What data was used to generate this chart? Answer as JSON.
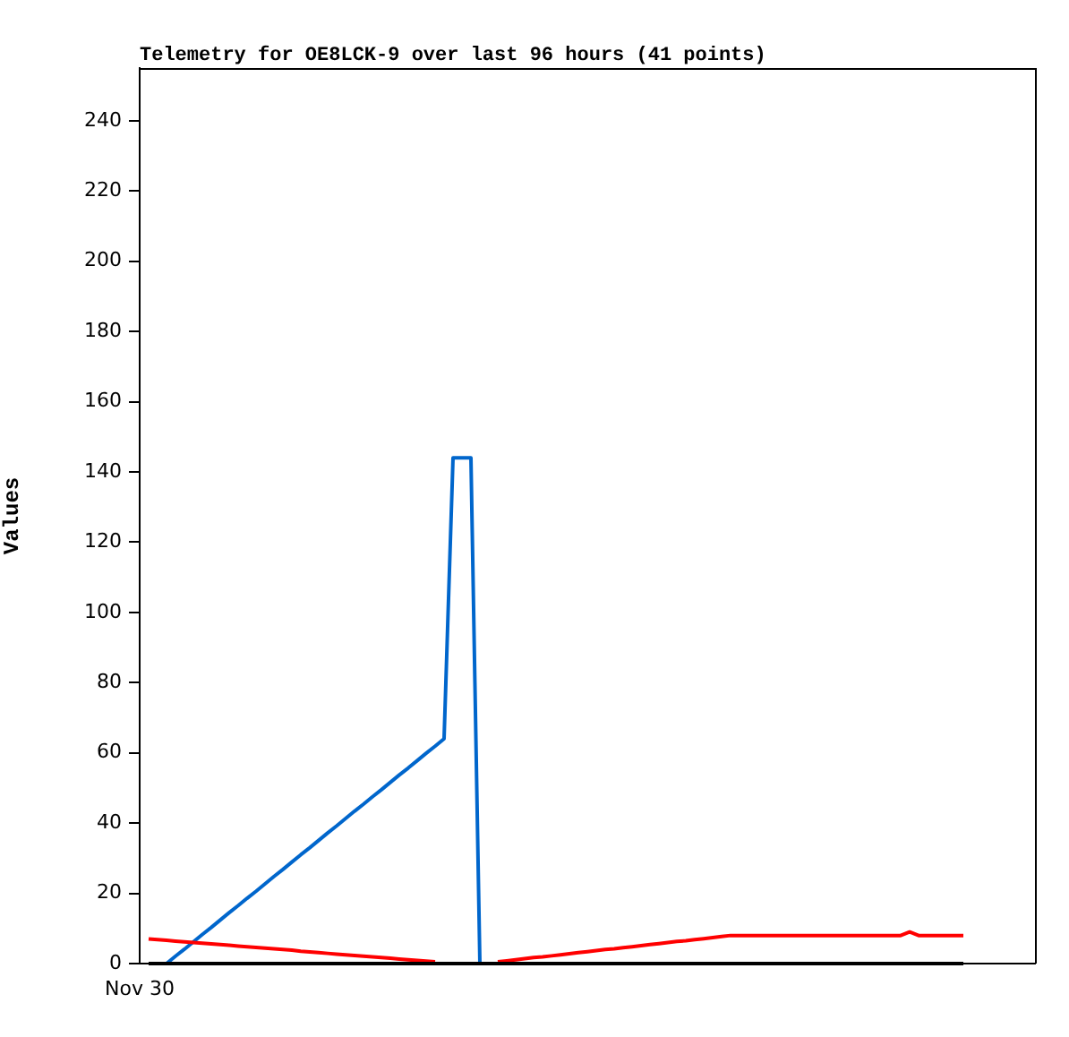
{
  "chart_data": {
    "type": "line",
    "title": "Telemetry for OE8LCK-9 over last 96 hours (41 points)",
    "ylabel": "Values",
    "categories": [
      "Nov 30",
      null,
      null,
      null,
      null,
      null,
      null,
      null,
      null,
      null,
      null,
      null,
      null,
      null,
      null,
      null,
      null,
      null,
      null,
      null,
      null,
      null,
      null,
      null,
      null,
      null,
      null,
      null,
      null,
      null,
      null,
      null,
      null,
      null,
      null,
      null,
      null,
      null,
      null,
      null,
      null,
      null,
      null,
      null,
      null,
      null,
      null,
      null,
      null,
      null,
      null,
      null,
      null,
      null,
      null,
      null,
      null,
      null,
      null,
      null,
      null,
      null,
      null,
      null,
      null,
      null,
      null,
      null,
      null,
      null,
      null,
      null,
      null,
      null,
      null,
      null,
      null,
      null,
      null,
      null,
      null,
      null,
      null,
      null,
      null,
      null,
      null,
      null,
      null,
      null,
      null,
      null,
      null,
      null,
      null,
      null,
      null,
      null,
      null,
      null,
      null
    ],
    "ylim": [
      0,
      255
    ],
    "yticks": [
      0,
      20,
      40,
      60,
      80,
      100,
      120,
      140,
      160,
      180,
      200,
      220,
      240
    ],
    "grid": false,
    "legend": false,
    "marker": "none",
    "line_style": "solid",
    "series": [
      {
        "color": "#000000",
        "values": [
          null,
          0,
          0,
          0,
          0,
          0,
          0,
          0,
          0,
          0,
          0,
          0,
          0,
          0,
          0,
          0,
          0,
          0,
          0,
          0,
          0,
          0,
          0,
          0,
          0,
          0,
          0,
          0,
          0,
          0,
          0,
          0,
          0,
          0,
          0,
          0,
          0,
          0,
          0,
          0,
          0,
          0,
          0,
          0,
          0,
          0,
          0,
          0,
          0,
          0,
          0,
          0,
          0,
          0,
          0,
          0,
          0,
          0,
          0,
          0,
          0,
          0,
          0,
          0,
          0,
          0,
          0,
          0,
          0,
          0,
          0,
          0,
          0,
          0,
          0,
          0,
          0,
          0,
          0,
          0,
          0,
          0,
          0,
          0,
          0,
          0,
          0,
          0,
          0,
          0,
          0,
          0,
          0,
          null,
          null,
          null,
          null,
          null,
          null,
          null,
          null
        ]
      },
      {
        "color": "#ff0000",
        "values": [
          null,
          7.0,
          6.8,
          6.6,
          6.4,
          6.2,
          6.0,
          5.8,
          5.6,
          5.4,
          5.2,
          5.0,
          4.8,
          4.6,
          4.4,
          4.2,
          4.0,
          3.8,
          3.5,
          3.3,
          3.1,
          2.9,
          2.7,
          2.5,
          2.3,
          2.1,
          1.9,
          1.7,
          1.5,
          1.3,
          1.1,
          0.9,
          0.7,
          0.5,
          null,
          null,
          null,
          null,
          null,
          null,
          0.5,
          0.8,
          1.1,
          1.4,
          1.7,
          1.9,
          2.2,
          2.5,
          2.8,
          3.1,
          3.4,
          3.7,
          4.0,
          4.2,
          4.5,
          4.8,
          5.1,
          5.4,
          5.7,
          6.0,
          6.3,
          6.5,
          6.8,
          7.1,
          7.4,
          7.7,
          8,
          8,
          8,
          8,
          8,
          8,
          8,
          8,
          8,
          8,
          8,
          8,
          8,
          8,
          8,
          8,
          8,
          8,
          8,
          8,
          9,
          8,
          8,
          8,
          8,
          8,
          8,
          null,
          null,
          null,
          null,
          null,
          null,
          null,
          null
        ]
      },
      {
        "color": "#0066cc",
        "values": [
          null,
          null,
          null,
          0,
          2.1,
          4.1,
          6.2,
          8.3,
          10.3,
          12.4,
          14.5,
          16.5,
          18.6,
          20.6,
          22.7,
          24.8,
          26.8,
          28.9,
          31.0,
          33.0,
          35.1,
          37.2,
          39.2,
          41.3,
          43.4,
          45.4,
          47.5,
          49.5,
          51.6,
          53.7,
          55.7,
          57.8,
          59.9,
          61.9,
          64,
          144,
          144,
          144,
          0,
          null,
          null,
          null,
          null,
          null,
          null,
          null,
          null,
          null,
          null,
          null,
          null,
          null,
          null,
          null,
          null,
          null,
          null,
          null,
          null,
          null,
          null,
          null,
          null,
          null,
          null,
          null,
          null,
          null,
          null,
          null,
          null,
          null,
          null,
          null,
          null,
          null,
          null,
          null,
          null,
          null,
          null,
          null,
          null,
          null,
          null,
          null,
          null,
          null,
          null,
          null,
          null,
          null,
          null,
          null,
          null,
          null,
          null,
          null,
          null,
          null,
          null
        ]
      }
    ]
  }
}
